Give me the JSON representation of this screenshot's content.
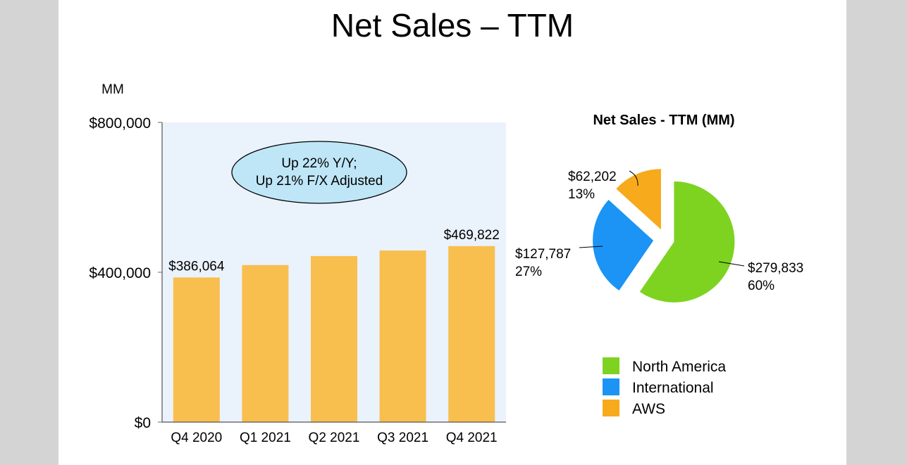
{
  "page_title": "Net Sales – TTM",
  "colors": {
    "bar": "#F8BF4F",
    "plot_bg": "#EAF2FC",
    "callout_fill": "#BFE6F7",
    "north_america": "#7ED321",
    "international": "#1B94F5",
    "aws": "#F6AA1C"
  },
  "chart_data": [
    {
      "type": "bar",
      "unit_label": "MM",
      "categories": [
        "Q4 2020",
        "Q1 2021",
        "Q2 2021",
        "Q3 2021",
        "Q4 2021"
      ],
      "values": [
        386064,
        419130,
        443298,
        457965,
        469822
      ],
      "data_labels": [
        "$386,064",
        "",
        "",
        "",
        "$469,822"
      ],
      "ylim": [
        0,
        800000
      ],
      "yticks": [
        {
          "value": 0,
          "label": "$0"
        },
        {
          "value": 400000,
          "label": "$400,000"
        },
        {
          "value": 800000,
          "label": "$800,000"
        }
      ],
      "callout": [
        "Up 22% Y/Y;",
        "Up 21% F/X Adjusted"
      ],
      "grid": false
    },
    {
      "type": "pie",
      "title": "Net Sales - TTM (MM)",
      "slices": [
        {
          "name": "North America",
          "value": 279833,
          "label": "$279,833",
          "percent": "60%",
          "color": "#7ED321"
        },
        {
          "name": "International",
          "value": 127787,
          "label": "$127,787",
          "percent": "27%",
          "color": "#1B94F5"
        },
        {
          "name": "AWS",
          "value": 62202,
          "label": "$62,202",
          "percent": "13%",
          "color": "#F6AA1C"
        }
      ],
      "legend": [
        "North America",
        "International",
        "AWS"
      ],
      "legend_position": "bottom"
    }
  ]
}
